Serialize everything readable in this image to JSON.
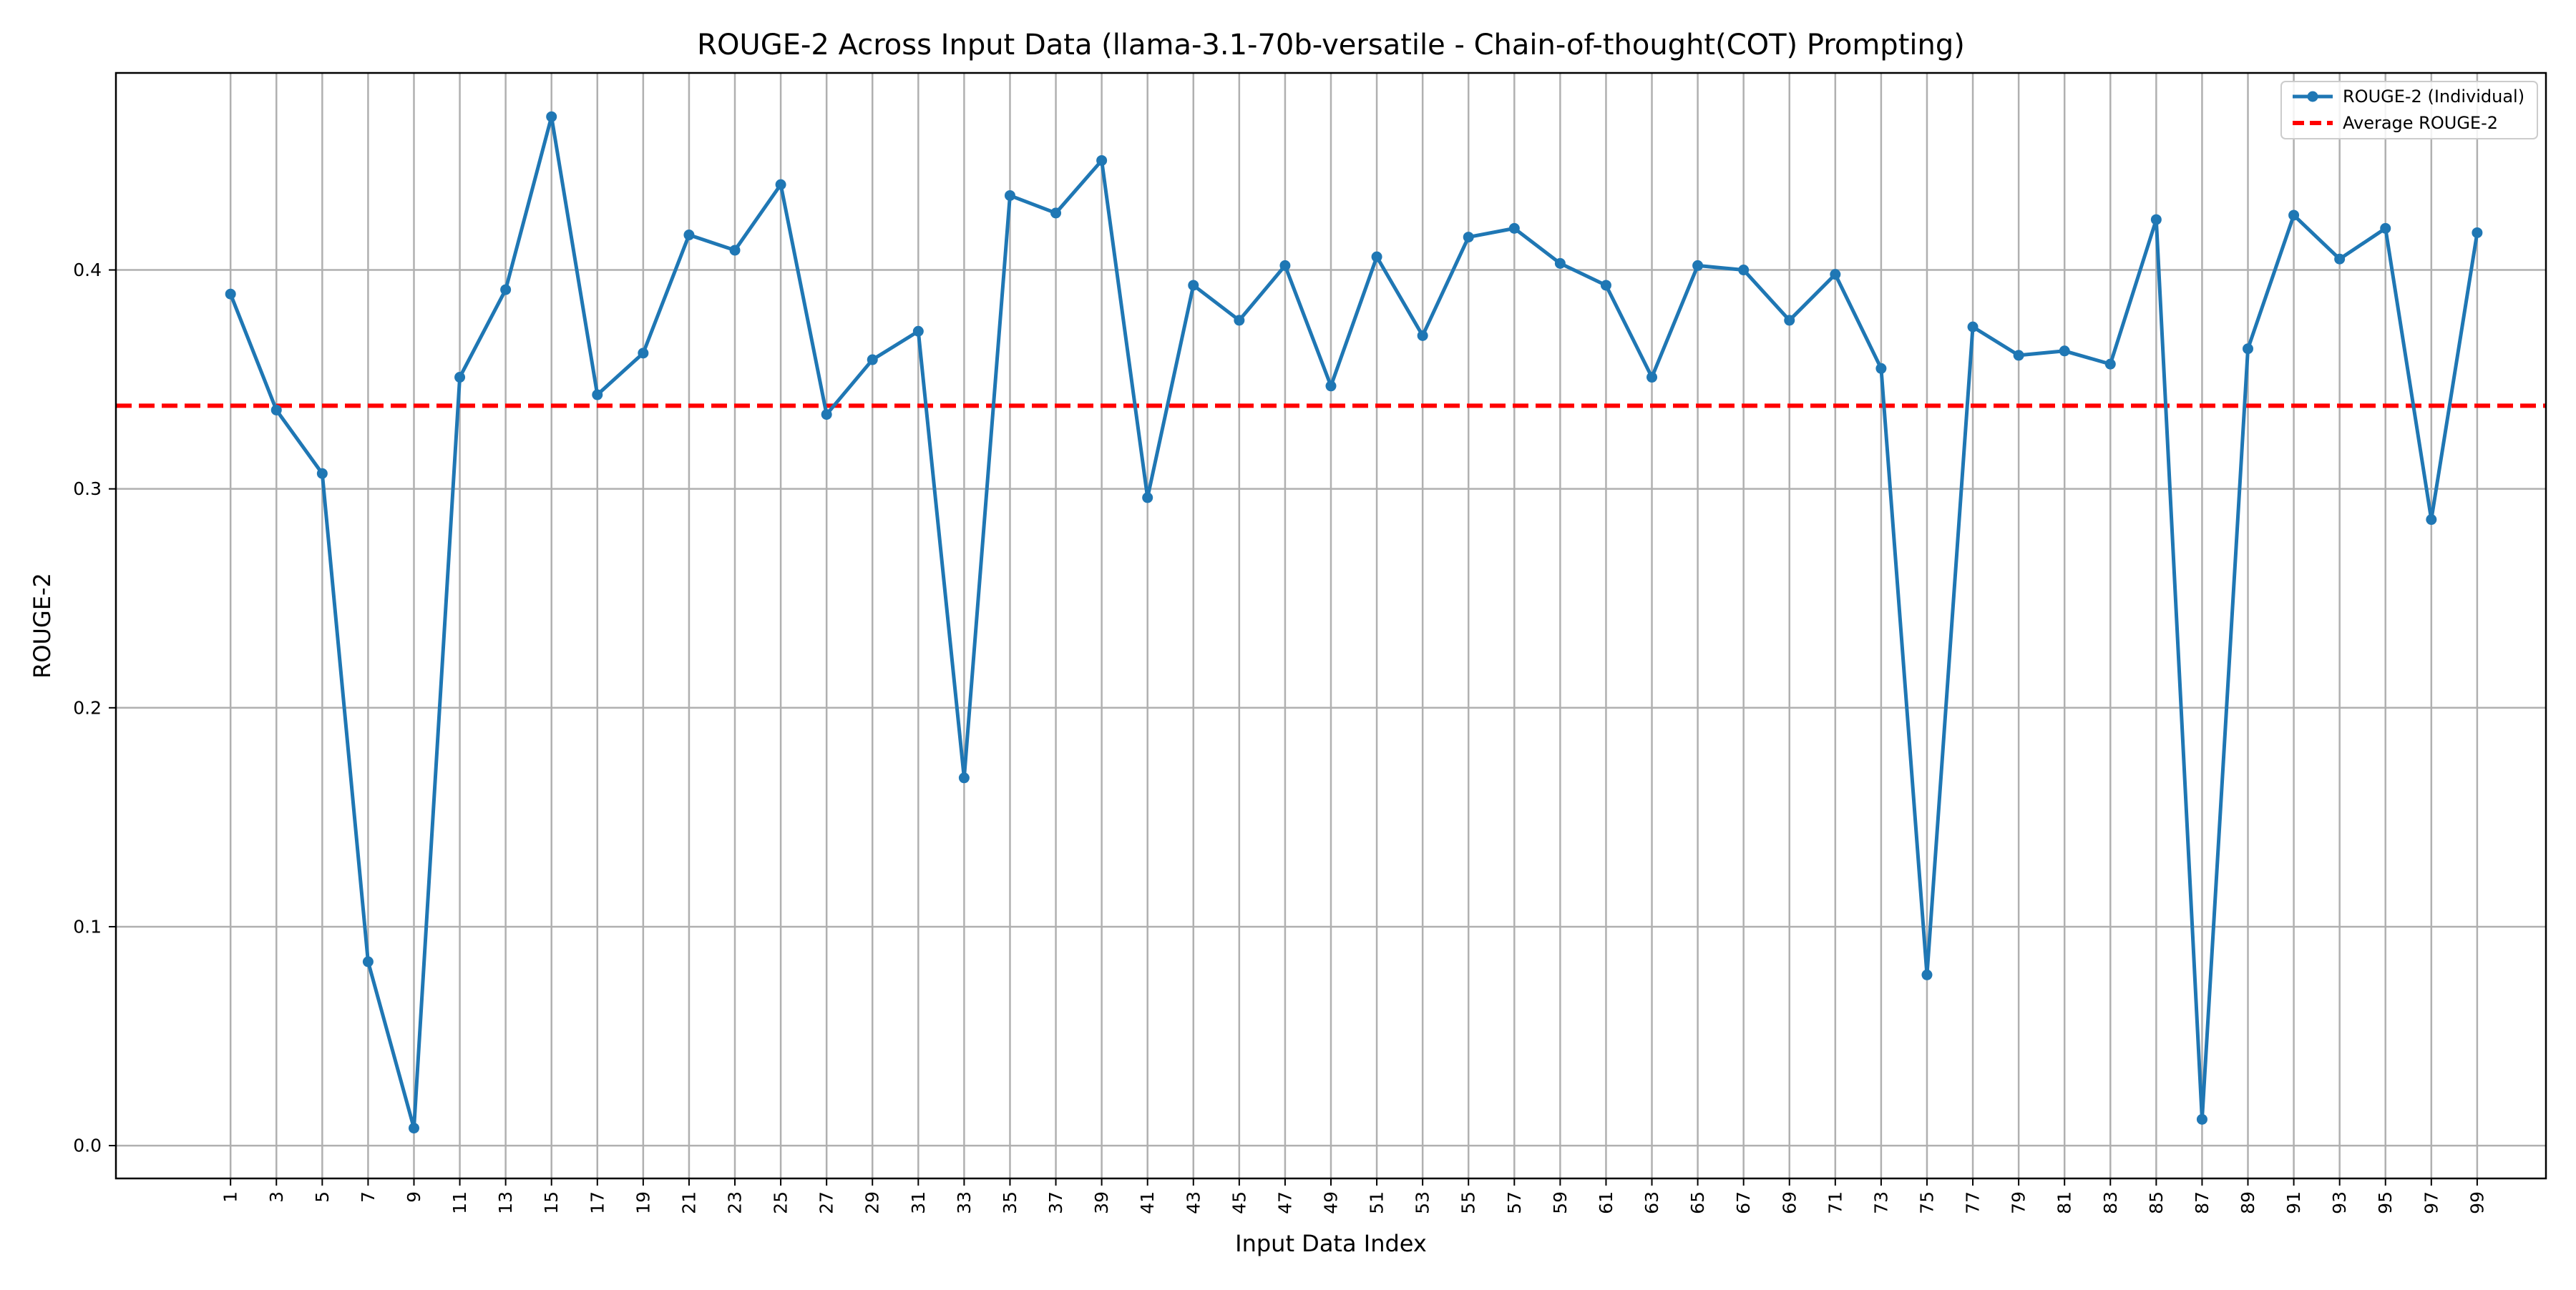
{
  "chart_data": {
    "type": "line",
    "title": "ROUGE-2 Across Input Data (llama-3.1-70b-versatile - Chain-of-thought(COT) Prompting)",
    "xlabel": "Input Data Index",
    "ylabel": "ROUGE-2",
    "x": [
      1,
      3,
      5,
      7,
      9,
      11,
      13,
      15,
      17,
      19,
      21,
      23,
      25,
      27,
      29,
      31,
      33,
      35,
      37,
      39,
      41,
      43,
      45,
      47,
      49,
      51,
      53,
      55,
      57,
      59,
      61,
      63,
      65,
      67,
      69,
      71,
      73,
      75,
      77,
      79,
      81,
      83,
      85,
      87,
      89,
      91,
      93,
      95,
      97,
      99
    ],
    "xticks": [
      1,
      3,
      5,
      7,
      9,
      11,
      13,
      15,
      17,
      19,
      21,
      23,
      25,
      27,
      29,
      31,
      33,
      35,
      37,
      39,
      41,
      43,
      45,
      47,
      49,
      51,
      53,
      55,
      57,
      59,
      61,
      63,
      65,
      67,
      69,
      71,
      73,
      75,
      77,
      79,
      81,
      83,
      85,
      87,
      89,
      91,
      93,
      95,
      97,
      99
    ],
    "yticks": [
      "0.0",
      "0.1",
      "0.2",
      "0.3",
      "0.4"
    ],
    "xlim": [
      -4.0,
      102.0
    ],
    "ylim": [
      -0.015,
      0.49
    ],
    "grid": true,
    "legend_position": "top-right",
    "series": [
      {
        "name": "ROUGE-2 (Individual)",
        "color": "#1f77b4",
        "marker": "circle",
        "values": [
          0.389,
          0.336,
          0.307,
          0.084,
          0.008,
          0.351,
          0.391,
          0.47,
          0.343,
          0.362,
          0.416,
          0.409,
          0.439,
          0.334,
          0.359,
          0.372,
          0.168,
          0.434,
          0.426,
          0.45,
          0.296,
          0.393,
          0.377,
          0.402,
          0.347,
          0.406,
          0.37,
          0.415,
          0.419,
          0.403,
          0.393,
          0.351,
          0.402,
          0.4,
          0.377,
          0.398,
          0.355,
          0.078,
          0.374,
          0.361,
          0.363,
          0.357,
          0.423,
          0.012,
          0.364,
          0.425,
          0.405,
          0.419,
          0.286,
          0.417
        ]
      }
    ],
    "reference_lines": [
      {
        "name": "Average ROUGE-2",
        "value": 0.338,
        "color": "#ff0000",
        "style": "dashed"
      }
    ]
  }
}
